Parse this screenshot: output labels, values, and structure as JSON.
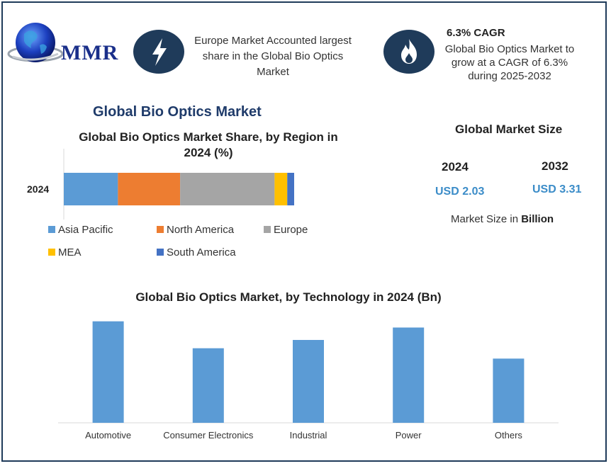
{
  "logo": {
    "text": "MMR"
  },
  "highlights": {
    "europe": "Europe Market Accounted largest share in the Global Bio Optics Market",
    "cagr_title": "6.3% CAGR",
    "cagr_text": "Global Bio Optics Market to grow at a CAGR of 6.3% during 2025-2032"
  },
  "main_title": "Global Bio Optics Market",
  "market_size": {
    "title": "Global Market Size",
    "year_a": "2024",
    "value_a": "USD 2.03",
    "year_b": "2032",
    "value_b": "USD 3.31",
    "unit_prefix": "Market Size in",
    "unit_bold": "Billion"
  },
  "colors": {
    "navy": "#1f3b5a",
    "asia_pacific": "#5b9bd5",
    "north_america": "#ed7d31",
    "europe": "#a5a5a5",
    "mea": "#ffc000",
    "south_america": "#4472c4",
    "bar": "#5b9bd5"
  },
  "icons": {
    "left": "lightning-icon",
    "right": "flame-icon"
  },
  "chart_data": [
    {
      "type": "bar",
      "orientation": "horizontal-stacked",
      "title": "Global Bio Optics Market Share, by Region in 2024 (%)",
      "categories": [
        "2024"
      ],
      "series": [
        {
          "name": "Asia Pacific",
          "values": [
            23.5
          ]
        },
        {
          "name": "North America",
          "values": [
            27
          ]
        },
        {
          "name": "Europe",
          "values": [
            41
          ]
        },
        {
          "name": "MEA",
          "values": [
            5.5
          ]
        },
        {
          "name": "South America",
          "values": [
            3
          ]
        }
      ],
      "xlim": [
        0,
        100
      ],
      "legend": "bottom"
    },
    {
      "type": "bar",
      "title": "Global Bio Optics Market, by Technology in 2024 (Bn)",
      "categories": [
        "Automotive",
        "Consumer Electronics",
        "Industrial",
        "Power",
        "Others"
      ],
      "values": [
        0.49,
        0.36,
        0.4,
        0.46,
        0.31
      ],
      "ylim": [
        0,
        0.53
      ],
      "grid": false,
      "legend": "none"
    }
  ]
}
